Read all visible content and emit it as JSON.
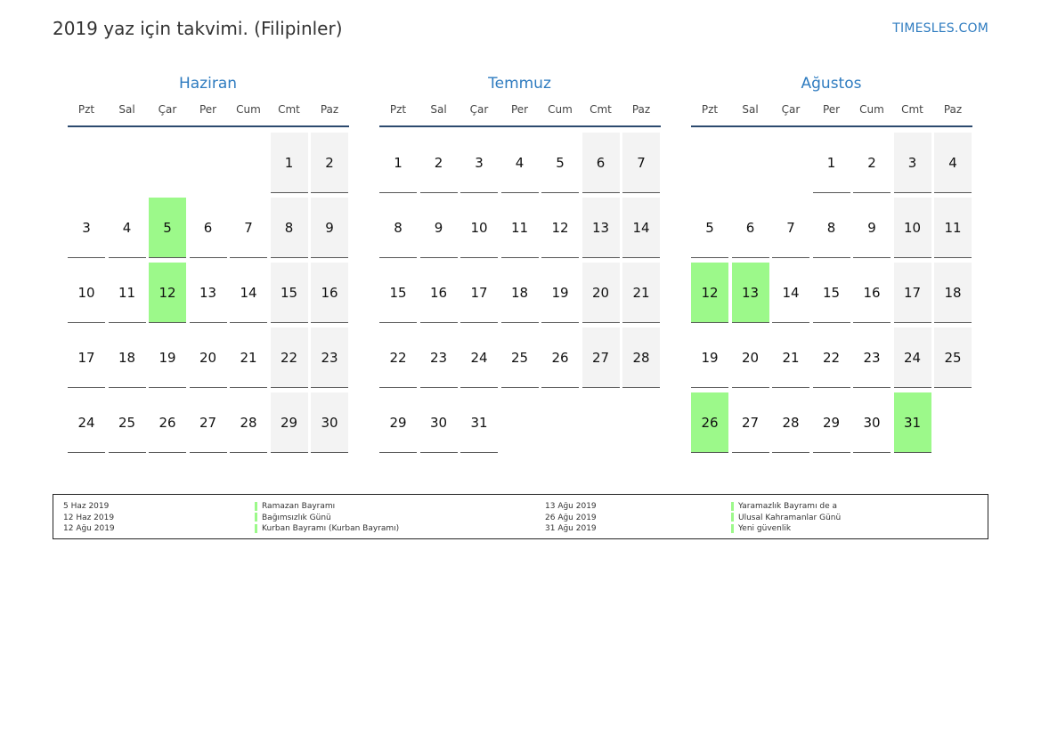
{
  "title": "2019 yaz için takvimi. (Filipinler)",
  "brand": "TIMESLES.COM",
  "weekdays": [
    "Pzt",
    "Sal",
    "Çar",
    "Per",
    "Cum",
    "Cmt",
    "Paz"
  ],
  "colors": {
    "holiday": "#9cf98a",
    "weekend": "#f3f3f3",
    "accent": "#2f7cc0",
    "rule": "#2c4a6e"
  },
  "months": [
    {
      "name": "Haziran",
      "first_weekday": 5,
      "days": 30,
      "holidays": [
        5,
        12
      ]
    },
    {
      "name": "Temmuz",
      "first_weekday": 0,
      "days": 31,
      "holidays": []
    },
    {
      "name": "Ağustos",
      "first_weekday": 3,
      "days": 31,
      "holidays": [
        12,
        13,
        26,
        31
      ]
    }
  ],
  "legend": [
    {
      "date": "5 Haz 2019",
      "name": "Ramazan Bayramı"
    },
    {
      "date": "12 Haz 2019",
      "name": "Bağımsızlık Günü"
    },
    {
      "date": "12 Ağu 2019",
      "name": "Kurban Bayramı (Kurban Bayramı)"
    },
    {
      "date": "13 Ağu 2019",
      "name": "Yaramazlık Bayramı de a"
    },
    {
      "date": "26 Ağu 2019",
      "name": "Ulusal Kahramanlar Günü"
    },
    {
      "date": "31 Ağu 2019",
      "name": "Yeni güvenlik"
    }
  ]
}
